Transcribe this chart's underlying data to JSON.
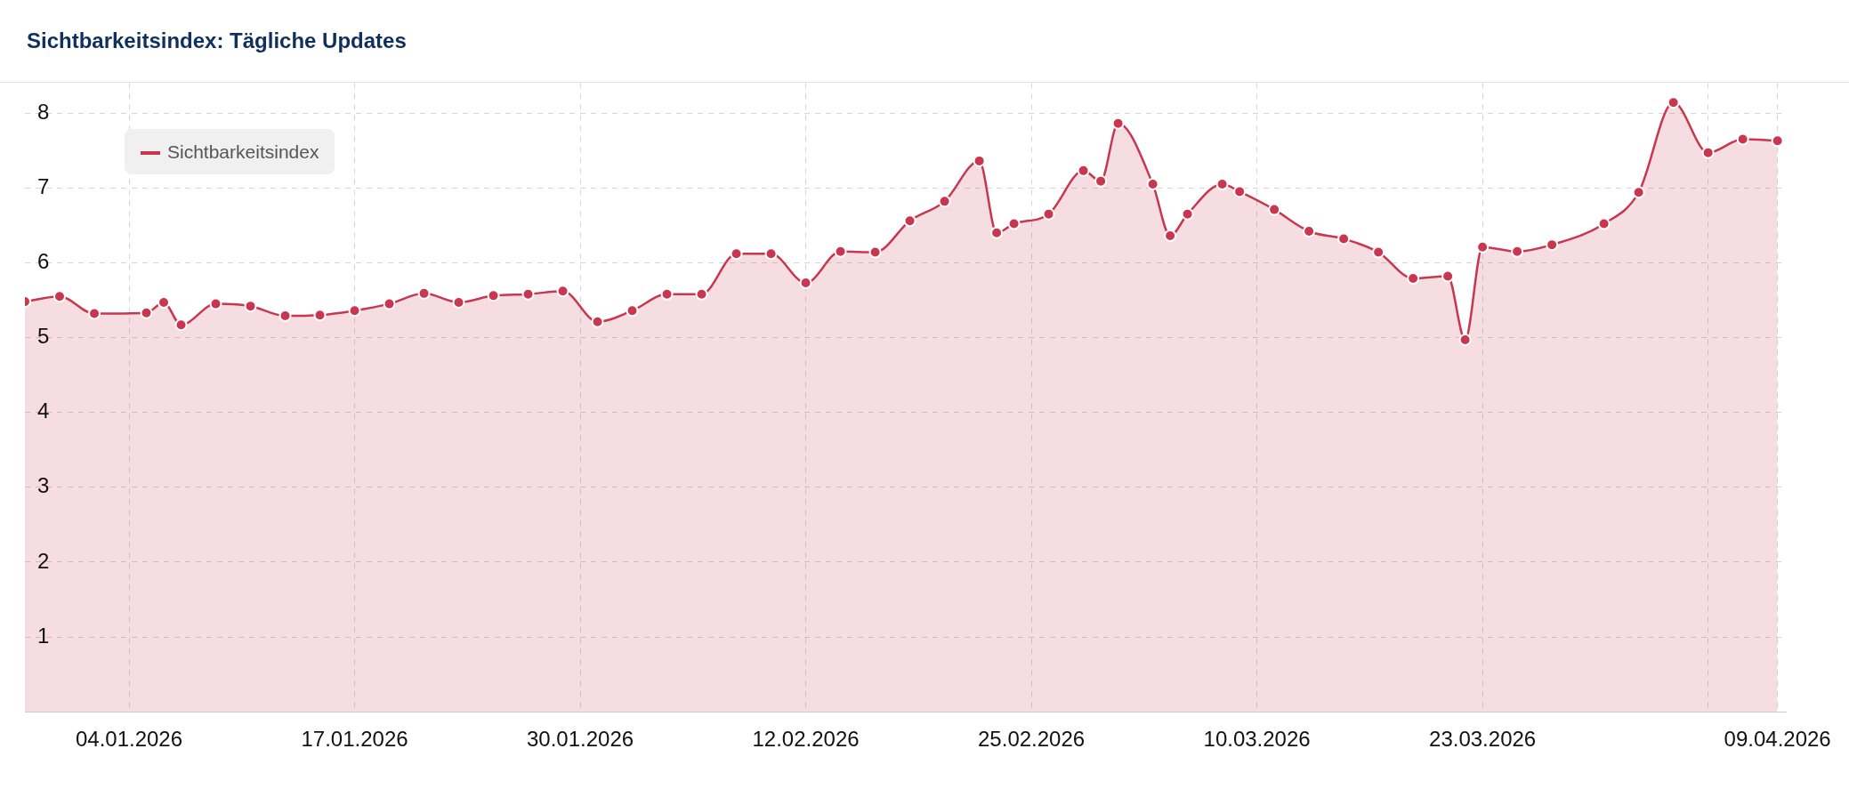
{
  "chart_data": {
    "type": "area",
    "title": "Sichtbarkeitsindex: Tägliche Updates",
    "x": [
      "2025-12-29",
      "2025-12-31",
      "2026-01-02",
      "2026-01-05",
      "2026-01-06",
      "2026-01-07",
      "2026-01-09",
      "2026-01-11",
      "2026-01-13",
      "2026-01-15",
      "2026-01-17",
      "2026-01-19",
      "2026-01-21",
      "2026-01-23",
      "2026-01-25",
      "2026-01-27",
      "2026-01-29",
      "2026-01-31",
      "2026-02-02",
      "2026-02-04",
      "2026-02-06",
      "2026-02-08",
      "2026-02-10",
      "2026-02-12",
      "2026-02-14",
      "2026-02-16",
      "2026-02-18",
      "2026-02-20",
      "2026-02-22",
      "2026-02-23",
      "2026-02-24",
      "2026-02-26",
      "2026-02-28",
      "2026-03-01",
      "2026-03-02",
      "2026-03-04",
      "2026-03-05",
      "2026-03-06",
      "2026-03-08",
      "2026-03-09",
      "2026-03-11",
      "2026-03-13",
      "2026-03-15",
      "2026-03-17",
      "2026-03-19",
      "2026-03-21",
      "2026-03-22",
      "2026-03-23",
      "2026-03-25",
      "2026-03-27",
      "2026-03-30",
      "2026-04-01",
      "2026-04-03",
      "2026-04-05",
      "2026-04-07",
      "2026-04-09"
    ],
    "series": [
      {
        "name": "Sichtbarkeitsindex",
        "color": "#c8374f",
        "values": [
          5.48,
          5.55,
          5.32,
          5.33,
          5.47,
          5.17,
          5.45,
          5.42,
          5.29,
          5.3,
          5.36,
          5.45,
          5.59,
          5.47,
          5.56,
          5.58,
          5.62,
          5.21,
          5.36,
          5.58,
          5.58,
          6.12,
          6.12,
          5.73,
          6.15,
          6.14,
          6.56,
          6.82,
          7.36,
          6.4,
          6.52,
          6.65,
          7.23,
          7.09,
          7.86,
          7.05,
          6.36,
          6.65,
          7.05,
          6.95,
          6.71,
          6.42,
          6.32,
          6.14,
          5.79,
          5.82,
          4.97,
          6.21,
          6.15,
          6.24,
          6.52,
          6.94,
          8.14,
          7.47,
          7.65,
          7.63
        ]
      }
    ],
    "xlim": [
      "2025-12-29",
      "2026-04-09T12:00"
    ],
    "xticks": [
      {
        "value": "2026-01-04",
        "label": "04.01.2026"
      },
      {
        "value": "2026-01-17",
        "label": "17.01.2026"
      },
      {
        "value": "2026-01-30",
        "label": "30.01.2026"
      },
      {
        "value": "2026-02-12",
        "label": "12.02.2026"
      },
      {
        "value": "2026-02-25",
        "label": "25.02.2026"
      },
      {
        "value": "2026-03-10",
        "label": "10.03.2026"
      },
      {
        "value": "2026-03-23",
        "label": "23.03.2026"
      },
      {
        "value": "2026-04-05",
        "label": null
      },
      {
        "value": "2026-04-09",
        "label": "09.04.2026"
      }
    ],
    "ylim": [
      0,
      8.4
    ],
    "yticks": [
      1,
      2,
      3,
      4,
      5,
      6,
      7,
      8
    ],
    "grid": true,
    "legend": "top left",
    "marker": "circle",
    "line_style": "solid"
  }
}
